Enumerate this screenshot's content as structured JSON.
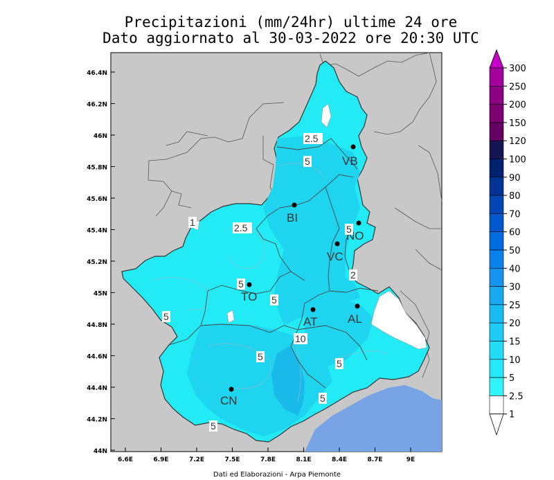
{
  "title": {
    "line1": "Precipitazioni (mm/24hr) ultime 24 ore",
    "line2": "Dato aggiornato al 30-03-2022 ore 20:30 UTC"
  },
  "footer": "Dati ed Elaborazioni - Arpa Piemonte",
  "axes": {
    "lat_labels": [
      "46.4N",
      "46.2N",
      "46N",
      "45.8N",
      "45.6N",
      "45.4N",
      "45.2N",
      "45N",
      "44.8N",
      "44.6N",
      "44.4N",
      "44.2N",
      "44N"
    ],
    "lon_labels": [
      "6.6E",
      "6.9E",
      "7.2E",
      "7.5E",
      "7.8E",
      "8.1E",
      "8.4E",
      "8.7E",
      "9E"
    ]
  },
  "colors": {
    "background_gray": "#c8c8c8",
    "sea": "#78a4e6",
    "fill_light": "#22ebf5",
    "fill_mid": "#1fd4ee",
    "fill_deep": "#19b9e9",
    "no_rain": "#ffffff",
    "border": "#444444"
  },
  "legend": {
    "values": [
      "300",
      "250",
      "200",
      "150",
      "120",
      "100",
      "90",
      "80",
      "70",
      "60",
      "50",
      "40",
      "30",
      "25",
      "20",
      "15",
      "10",
      "5",
      "2.5",
      "1"
    ],
    "colors": [
      "#c400c4",
      "#a4009c",
      "#8c0084",
      "#7c0070",
      "#640064",
      "#141450",
      "#002070",
      "#003494",
      "#0046b4",
      "#0058cc",
      "#006ce0",
      "#0a82ec",
      "#1494ee",
      "#18a8f0",
      "#18bcf2",
      "#1cccf4",
      "#20dcf6",
      "#26e8f8",
      "#30f4fa",
      "#ffffff"
    ]
  },
  "cities": [
    {
      "label": "VB"
    },
    {
      "label": "BI"
    },
    {
      "label": "NO"
    },
    {
      "label": "VC"
    },
    {
      "label": "TO"
    },
    {
      "label": "AT"
    },
    {
      "label": "AL"
    },
    {
      "label": "CN"
    }
  ],
  "contour_labels": [
    "2.5",
    "5",
    "2.5",
    "5",
    "5",
    "10",
    "5",
    "5",
    "2",
    "5",
    "1",
    "5",
    "5",
    "5"
  ]
}
